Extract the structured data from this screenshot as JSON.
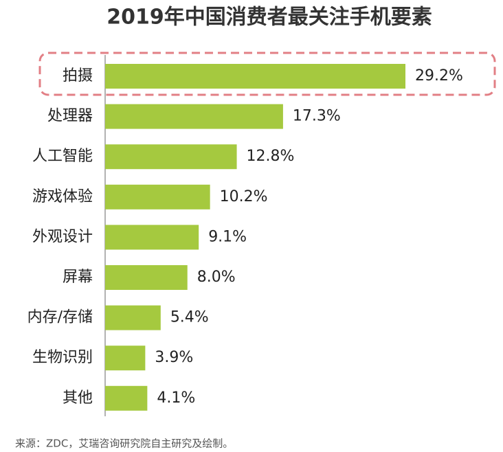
{
  "chart_data": {
    "type": "bar",
    "orientation": "horizontal",
    "title": "2019年中国消费者最关注手机要素",
    "categories": [
      "拍摄",
      "处理器",
      "人工智能",
      "游戏体验",
      "外观设计",
      "屏幕",
      "内存/存储",
      "生物识别",
      "其他"
    ],
    "values": [
      29.2,
      17.3,
      12.8,
      10.2,
      9.1,
      8.0,
      5.4,
      3.9,
      4.1
    ],
    "value_labels": [
      "29.2%",
      "17.3%",
      "12.8%",
      "10.2%",
      "9.1%",
      "8.0%",
      "5.4%",
      "3.9%",
      "4.1%"
    ],
    "color": "#a5c93f",
    "source": "来源：ZDC，艾瑞咨询研究院自主研究及绘制。"
  }
}
